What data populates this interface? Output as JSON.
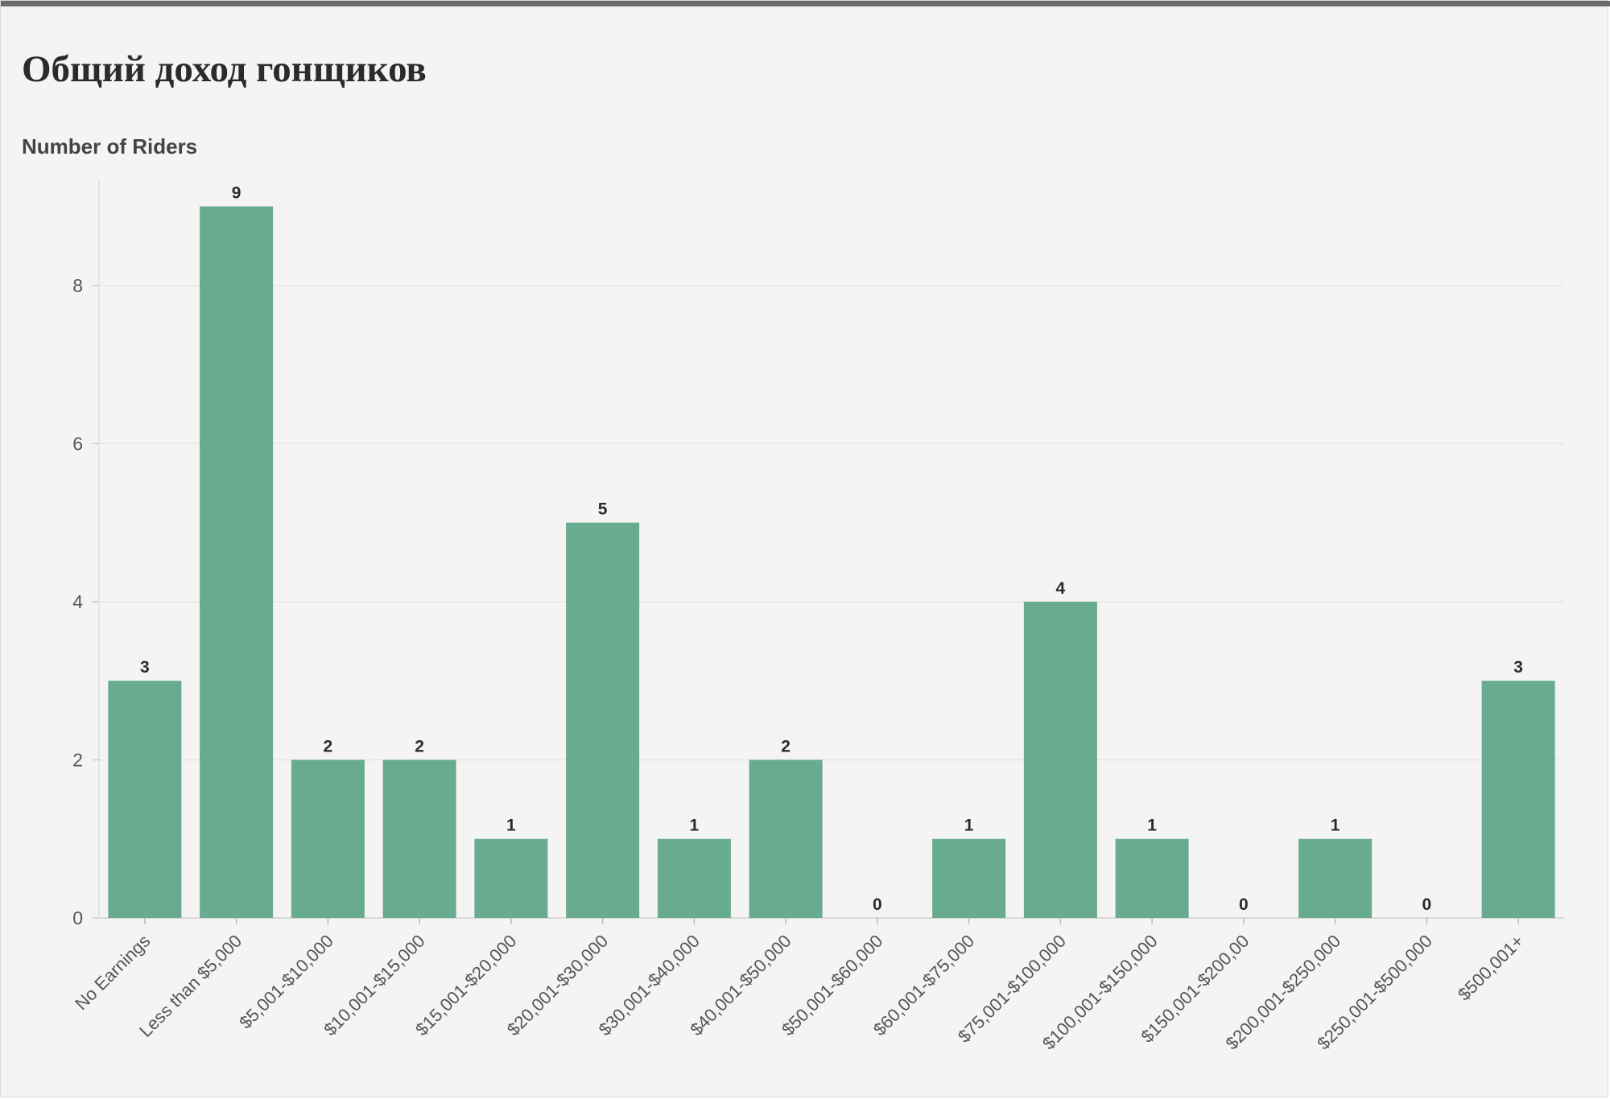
{
  "title": "Общий доход гонщиков",
  "chart_data": {
    "type": "bar",
    "ylabel": "Number of Riders",
    "xlabel": "",
    "categories": [
      "No Earnings",
      "Less than $5,000",
      "$5,001-$10,000",
      "$10,001-$15,000",
      "$15,001-$20,000",
      "$20,001-$30,000",
      "$30,001-$40,000",
      "$40,001-$50,000",
      "$50,001-$60,000",
      "$60,001-$75,000",
      "$75,001-$100,000",
      "$100,001-$150,000",
      "$150,001-$200,00",
      "$200,001-$250,000",
      "$250,001-$500,000",
      "$500,001+"
    ],
    "values": [
      3,
      9,
      2,
      2,
      1,
      5,
      1,
      2,
      0,
      1,
      4,
      1,
      0,
      1,
      0,
      3
    ],
    "ylim": [
      0,
      9.3
    ],
    "yticks": [
      0,
      2,
      4,
      6,
      8
    ],
    "grid": true,
    "data_labels": true,
    "bar_color": "#68ab8f"
  }
}
